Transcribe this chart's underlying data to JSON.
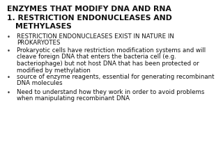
{
  "bg_color": "#ffffff",
  "title1": "ENZYMES THAT MODIFY DNA AND RNA",
  "title2": "1. RESTRICTION ENDONUCLEASES AND",
  "title3": "   METHYLASES",
  "bullets": [
    [
      "RESTRICTION ENDONUCLEASES EXIST IN NATURE IN",
      "PROKARYOTES"
    ],
    [
      "Prokaryotic cells have restriction modification systems and will",
      "cleave foreign DNA that enters the bacteria cell (e.g.",
      "bacteriophage) but not host DNA that has been protected or",
      "modified by methylation"
    ],
    [
      "source of enzyme reagents, essential for generating recombinant",
      "DNA molecules"
    ],
    [
      "Need to understand how they work in order to avoid problems",
      "when manipulating recombinant DNA"
    ]
  ],
  "title_fontsize": 7.8,
  "bullet_fontsize": 6.2,
  "text_color": "#111111",
  "bullet_color": "#333333"
}
